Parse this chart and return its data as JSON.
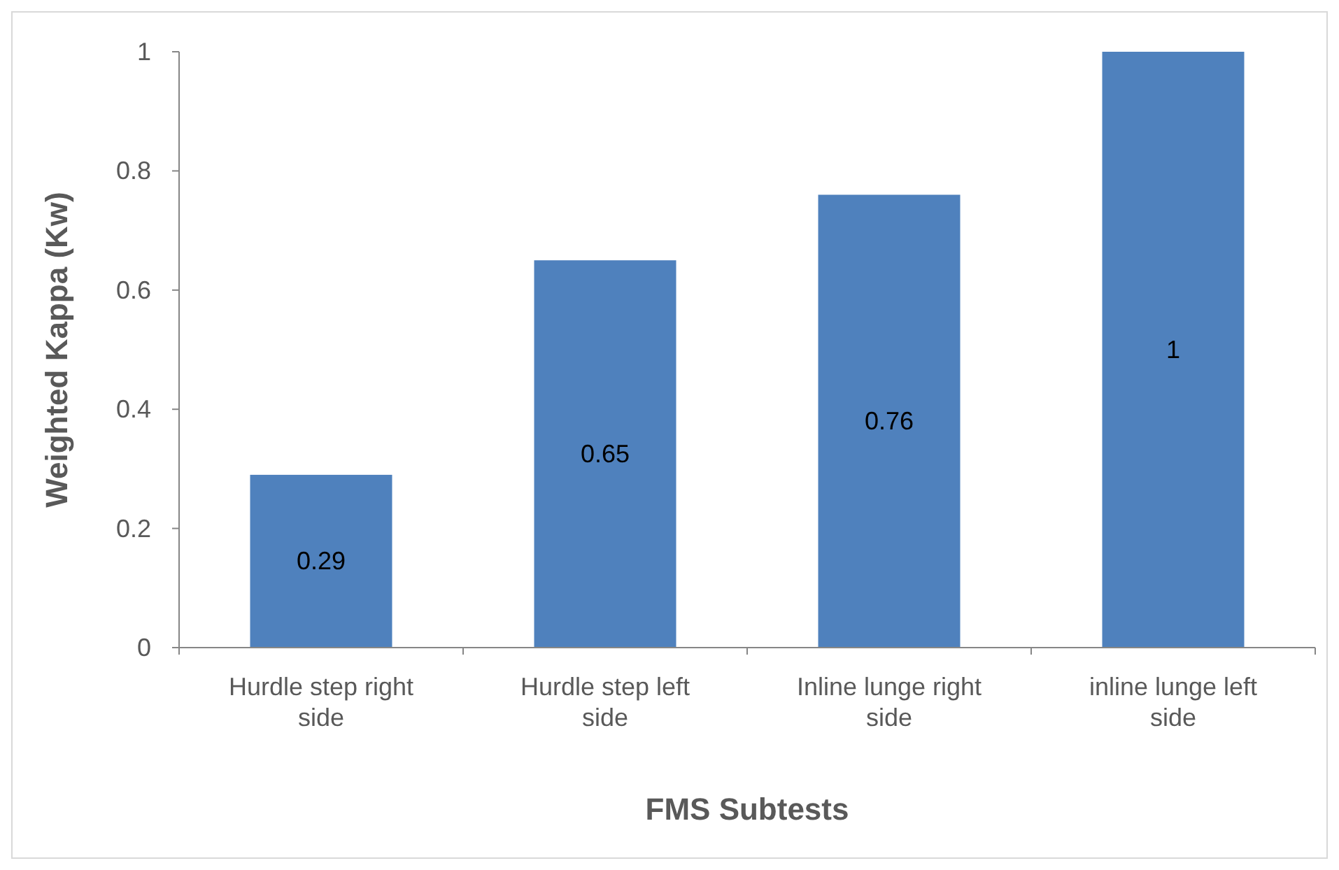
{
  "chart_data": {
    "type": "bar",
    "xlabel": "FMS Subtests",
    "ylabel": "Weighted Kappa (Kw)",
    "categories": [
      "Hurdle step right side",
      "Hurdle step left side",
      "Inline lunge right side",
      "inline lunge left side"
    ],
    "values": [
      0.29,
      0.65,
      0.76,
      1
    ],
    "color": "#4f81bd",
    "ylim": [
      0,
      1
    ],
    "yticks": [
      0,
      0.2,
      0.4,
      0.6,
      0.8,
      1
    ],
    "grid": false,
    "data_labels": true
  }
}
